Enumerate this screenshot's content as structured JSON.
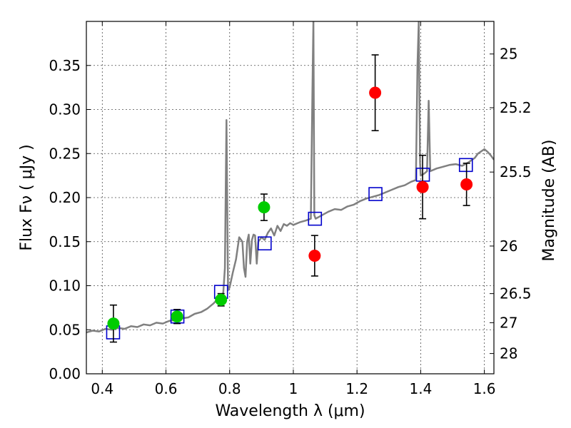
{
  "chart_data": {
    "type": "scatter",
    "title": "",
    "xlabel": "Wavelength  λ (μm)",
    "ylabel": "Flux  Fν  ( μJy )",
    "ylabel_right": "Magnitude (AB)",
    "xlim": [
      0.35,
      1.63
    ],
    "ylim": [
      0.0,
      0.4
    ],
    "grid": true,
    "x_ticks": [
      0.4,
      0.6,
      0.8,
      1.0,
      1.2,
      1.4,
      1.6
    ],
    "x_tick_labels": [
      "0.4",
      "0.6",
      "0.8",
      "1",
      "1.2",
      "1.4",
      "1.6"
    ],
    "y_ticks": [
      0.0,
      0.05,
      0.1,
      0.15,
      0.2,
      0.25,
      0.3,
      0.35
    ],
    "y_tick_labels": [
      "0.00",
      "0.05",
      "0.10",
      "0.15",
      "0.20",
      "0.25",
      "0.30",
      "0.35"
    ],
    "right_ticks": [
      {
        "label": "25",
        "flux": 0.363
      },
      {
        "label": "25.2",
        "flux": 0.302
      },
      {
        "label": "25.5",
        "flux": 0.229
      },
      {
        "label": "26",
        "flux": 0.145
      },
      {
        "label": "26.5",
        "flux": 0.091
      },
      {
        "label": "27",
        "flux": 0.058
      },
      {
        "label": "28",
        "flux": 0.023
      }
    ],
    "series": [
      {
        "kind": "line",
        "color": "#808080",
        "points": [
          [
            0.35,
            0.047
          ],
          [
            0.37,
            0.049
          ],
          [
            0.39,
            0.048
          ],
          [
            0.41,
            0.051
          ],
          [
            0.43,
            0.05
          ],
          [
            0.45,
            0.052
          ],
          [
            0.47,
            0.051
          ],
          [
            0.49,
            0.054
          ],
          [
            0.51,
            0.053
          ],
          [
            0.53,
            0.056
          ],
          [
            0.55,
            0.055
          ],
          [
            0.57,
            0.058
          ],
          [
            0.59,
            0.057
          ],
          [
            0.61,
            0.06
          ],
          [
            0.63,
            0.061
          ],
          [
            0.65,
            0.063
          ],
          [
            0.67,
            0.064
          ],
          [
            0.69,
            0.068
          ],
          [
            0.71,
            0.07
          ],
          [
            0.73,
            0.074
          ],
          [
            0.75,
            0.08
          ],
          [
            0.77,
            0.088
          ],
          [
            0.78,
            0.092
          ],
          [
            0.785,
            0.12
          ],
          [
            0.79,
            0.288
          ],
          [
            0.795,
            0.095
          ],
          [
            0.8,
            0.098
          ],
          [
            0.81,
            0.115
          ],
          [
            0.82,
            0.13
          ],
          [
            0.83,
            0.155
          ],
          [
            0.84,
            0.15
          ],
          [
            0.845,
            0.12
          ],
          [
            0.85,
            0.11
          ],
          [
            0.855,
            0.15
          ],
          [
            0.86,
            0.158
          ],
          [
            0.865,
            0.125
          ],
          [
            0.87,
            0.152
          ],
          [
            0.875,
            0.158
          ],
          [
            0.88,
            0.157
          ],
          [
            0.885,
            0.125
          ],
          [
            0.89,
            0.15
          ],
          [
            0.9,
            0.155
          ],
          [
            0.91,
            0.152
          ],
          [
            0.92,
            0.16
          ],
          [
            0.93,
            0.165
          ],
          [
            0.94,
            0.157
          ],
          [
            0.95,
            0.168
          ],
          [
            0.96,
            0.162
          ],
          [
            0.97,
            0.17
          ],
          [
            0.98,
            0.168
          ],
          [
            0.99,
            0.171
          ],
          [
            1.0,
            0.169
          ],
          [
            1.02,
            0.172
          ],
          [
            1.04,
            0.174
          ],
          [
            1.055,
            0.176
          ],
          [
            1.06,
            0.32
          ],
          [
            1.063,
            0.4
          ],
          [
            1.066,
            0.18
          ],
          [
            1.07,
            0.176
          ],
          [
            1.09,
            0.18
          ],
          [
            1.11,
            0.184
          ],
          [
            1.13,
            0.187
          ],
          [
            1.15,
            0.186
          ],
          [
            1.17,
            0.19
          ],
          [
            1.19,
            0.192
          ],
          [
            1.21,
            0.196
          ],
          [
            1.23,
            0.199
          ],
          [
            1.25,
            0.201
          ],
          [
            1.27,
            0.203
          ],
          [
            1.29,
            0.206
          ],
          [
            1.31,
            0.209
          ],
          [
            1.33,
            0.212
          ],
          [
            1.35,
            0.214
          ],
          [
            1.37,
            0.218
          ],
          [
            1.385,
            0.22
          ],
          [
            1.39,
            0.35
          ],
          [
            1.394,
            0.4
          ],
          [
            1.398,
            0.24
          ],
          [
            1.4,
            0.225
          ],
          [
            1.41,
            0.227
          ],
          [
            1.42,
            0.23
          ],
          [
            1.425,
            0.31
          ],
          [
            1.43,
            0.23
          ],
          [
            1.45,
            0.233
          ],
          [
            1.47,
            0.235
          ],
          [
            1.49,
            0.237
          ],
          [
            1.51,
            0.238
          ],
          [
            1.53,
            0.236
          ],
          [
            1.55,
            0.24
          ],
          [
            1.57,
            0.245
          ],
          [
            1.58,
            0.25
          ],
          [
            1.6,
            0.255
          ],
          [
            1.61,
            0.252
          ],
          [
            1.62,
            0.248
          ],
          [
            1.63,
            0.243
          ]
        ]
      },
      {
        "kind": "squares",
        "color": "#0000cc",
        "points": [
          [
            0.434,
            0.047
          ],
          [
            0.636,
            0.065
          ],
          [
            0.773,
            0.093
          ],
          [
            0.91,
            0.148
          ],
          [
            1.068,
            0.176
          ],
          [
            1.258,
            0.204
          ],
          [
            1.407,
            0.226
          ],
          [
            1.542,
            0.237
          ]
        ]
      },
      {
        "kind": "points_errorbar",
        "color": "#00cc00",
        "points": [
          {
            "x": 0.435,
            "y": 0.057,
            "err": 0.021
          },
          {
            "x": 0.635,
            "y": 0.065,
            "err": 0.008
          },
          {
            "x": 0.773,
            "y": 0.084,
            "err": 0.007
          },
          {
            "x": 0.908,
            "y": 0.189,
            "err": 0.015
          }
        ]
      },
      {
        "kind": "points_errorbar",
        "color": "#ff0000",
        "points": [
          {
            "x": 1.067,
            "y": 0.134,
            "err": 0.023
          },
          {
            "x": 1.257,
            "y": 0.319,
            "err": 0.043
          },
          {
            "x": 1.406,
            "y": 0.212,
            "err": 0.036
          },
          {
            "x": 1.544,
            "y": 0.215,
            "err": 0.024
          }
        ]
      }
    ]
  }
}
